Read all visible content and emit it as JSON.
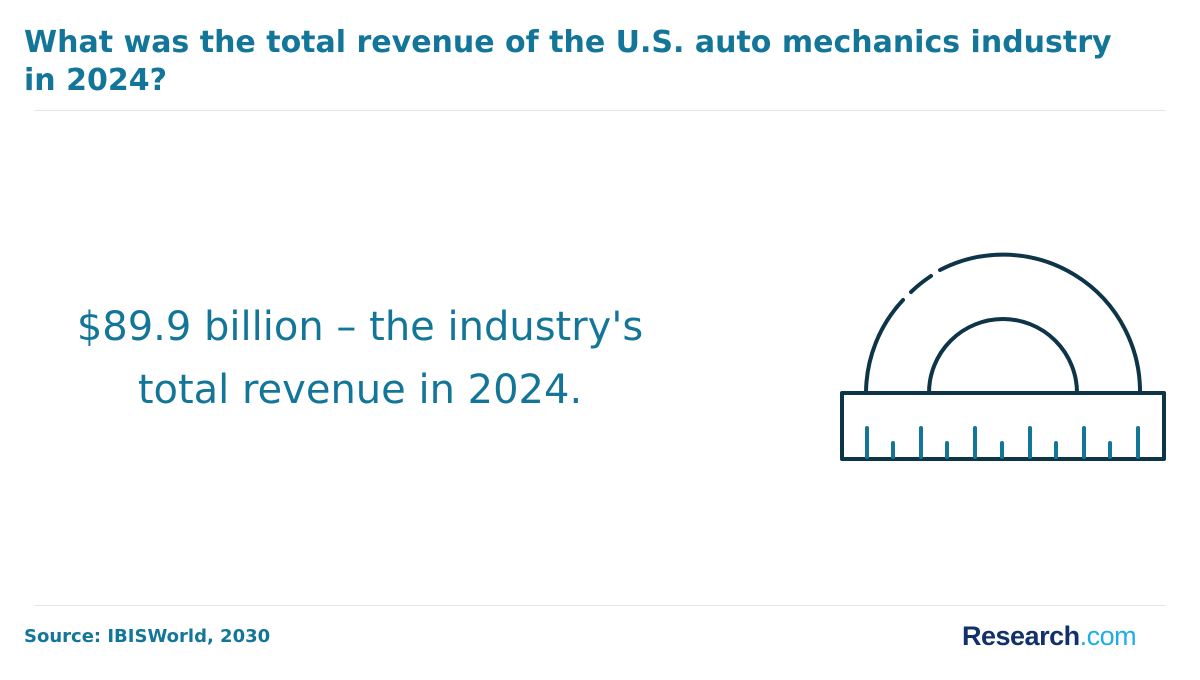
{
  "header": {
    "title": "What was the total revenue of the U.S. auto mechanics industry in 2024?"
  },
  "main": {
    "statement_line1": "$89.9 billion – the industry's",
    "statement_line2": "total revenue in 2024.",
    "illustration_icon": "protractor-ruler-icon"
  },
  "footer": {
    "source": "Source: IBISWorld, 2030",
    "logo_main": "Research",
    "logo_suffix": ".com"
  },
  "colors": {
    "title": "#137699",
    "icon_dark": "#0e3448",
    "icon_ticks": "#137699",
    "logo_main": "#12306b",
    "logo_suffix": "#1eaee6"
  }
}
